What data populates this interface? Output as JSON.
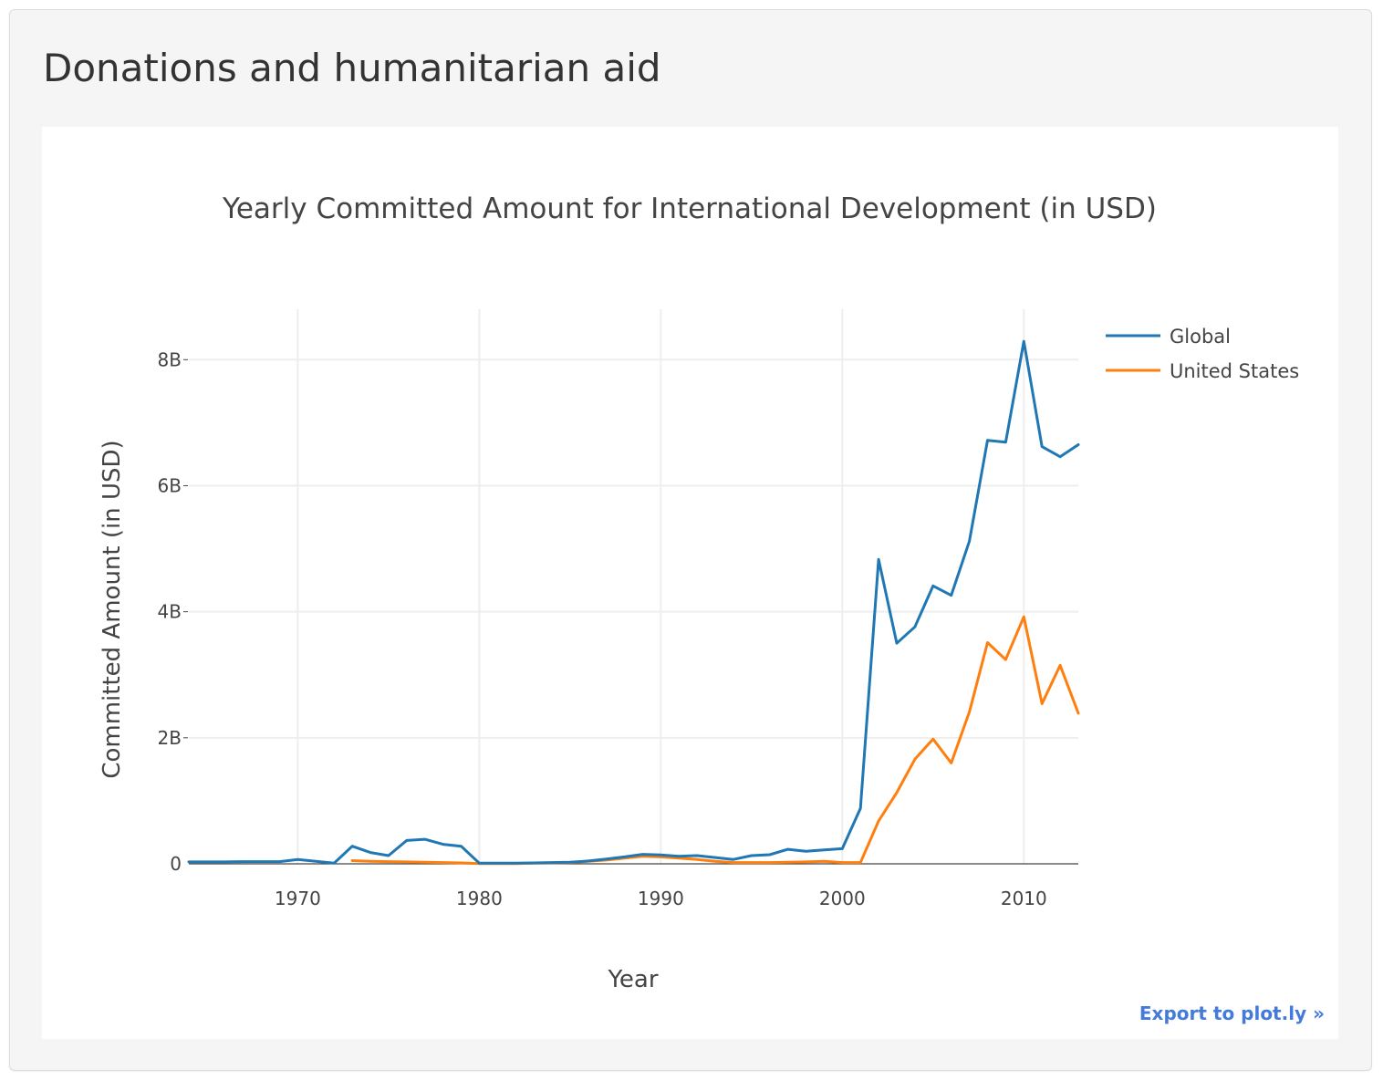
{
  "page": {
    "title": "Donations and humanitarian aid",
    "export_label": "Export to plot.ly »"
  },
  "chart_data": {
    "type": "line",
    "title": "Yearly Committed Amount for International Development (in USD)",
    "xlabel": "Year",
    "ylabel": "Committed Amount (in USD)",
    "xlim": [
      1964,
      2013
    ],
    "ylim": [
      0,
      8800000000
    ],
    "x_ticks": [
      1970,
      1980,
      1990,
      2000,
      2010
    ],
    "y_ticks": [
      0,
      2000000000,
      4000000000,
      6000000000,
      8000000000
    ],
    "y_tick_labels": [
      "0",
      "2B",
      "4B",
      "6B",
      "8B"
    ],
    "grid": true,
    "legend_position": "top-right",
    "series": [
      {
        "name": "Global",
        "color": "#1f77b4",
        "x": [
          1964,
          1965,
          1966,
          1967,
          1968,
          1969,
          1970,
          1971,
          1972,
          1973,
          1974,
          1975,
          1976,
          1977,
          1978,
          1979,
          1980,
          1981,
          1982,
          1983,
          1984,
          1985,
          1986,
          1987,
          1988,
          1989,
          1990,
          1991,
          1992,
          1993,
          1994,
          1995,
          1996,
          1997,
          1998,
          1999,
          2000,
          2001,
          2002,
          2003,
          2004,
          2005,
          2006,
          2007,
          2008,
          2009,
          2010,
          2011,
          2012,
          2013
        ],
        "y": [
          30000000,
          30000000,
          30000000,
          35000000,
          35000000,
          35000000,
          70000000,
          40000000,
          10000000,
          280000000,
          180000000,
          130000000,
          370000000,
          390000000,
          310000000,
          280000000,
          10000000,
          10000000,
          10000000,
          15000000,
          20000000,
          25000000,
          45000000,
          75000000,
          110000000,
          150000000,
          140000000,
          120000000,
          130000000,
          100000000,
          70000000,
          130000000,
          145000000,
          230000000,
          200000000,
          220000000,
          240000000,
          880000000,
          4830000000,
          3500000000,
          3760000000,
          4410000000,
          4260000000,
          5120000000,
          6720000000,
          6690000000,
          8290000000,
          6620000000,
          6460000000,
          6650000000
        ]
      },
      {
        "name": "United States",
        "color": "#ff7f0e",
        "x": [
          1973,
          1974,
          1975,
          1976,
          1977,
          1978,
          1979,
          1980,
          1981,
          1982,
          1983,
          1984,
          1985,
          1986,
          1987,
          1988,
          1989,
          1990,
          1991,
          1992,
          1993,
          1994,
          1995,
          1996,
          1997,
          1998,
          1999,
          2000,
          2001,
          2002,
          2003,
          2004,
          2005,
          2006,
          2007,
          2008,
          2009,
          2010,
          2011,
          2012,
          2013
        ],
        "y": [
          50000000,
          40000000,
          35000000,
          30000000,
          25000000,
          20000000,
          15000000,
          5000000,
          5000000,
          5000000,
          10000000,
          15000000,
          20000000,
          40000000,
          60000000,
          90000000,
          120000000,
          110000000,
          90000000,
          70000000,
          40000000,
          20000000,
          20000000,
          20000000,
          25000000,
          30000000,
          40000000,
          20000000,
          20000000,
          680000000,
          1130000000,
          1660000000,
          1980000000,
          1600000000,
          2410000000,
          3510000000,
          3240000000,
          3920000000,
          2540000000,
          3150000000,
          2390000000
        ]
      }
    ]
  }
}
